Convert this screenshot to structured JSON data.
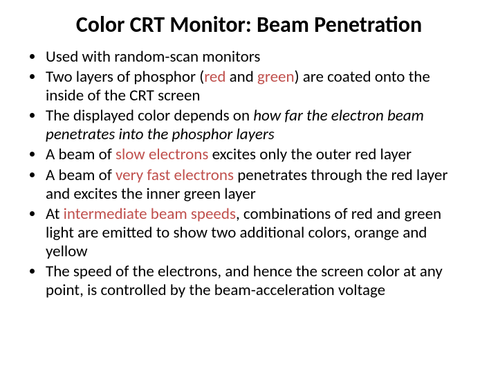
{
  "title": "Color CRT Monitor: Beam Penetration",
  "accent_color": "#c0504d",
  "text_color": "#000000",
  "background_color": "#ffffff",
  "title_fontsize": 32,
  "bullet_fontsize": 23,
  "bullets": {
    "b0": {
      "t0": "Used with random-scan monitors"
    },
    "b1": {
      "t0": "Two layers of phosphor (",
      "a0": "red",
      "t1": " and ",
      "a1": "green",
      "t2": ") are coated onto the inside of the CRT screen"
    },
    "b2": {
      "t0": "The displayed color depends on ",
      "i0": "how far the electron beam penetrates into the phosphor layers"
    },
    "b3": {
      "t0": "A beam of ",
      "a0": "slow electrons",
      "t1": " excites only the outer red layer"
    },
    "b4": {
      "t0": "A beam of ",
      "a0": "very fast electrons",
      "t1": " penetrates through the red layer and excites the inner green layer"
    },
    "b5": {
      "t0": "At ",
      "a0": "intermediate beam speeds",
      "t1": ", combinations of red and green light are emitted to show two additional colors, orange and yellow"
    },
    "b6": {
      "t0": "The speed of the electrons, and hence the screen color at any point, is controlled by the beam-acceleration voltage"
    }
  }
}
